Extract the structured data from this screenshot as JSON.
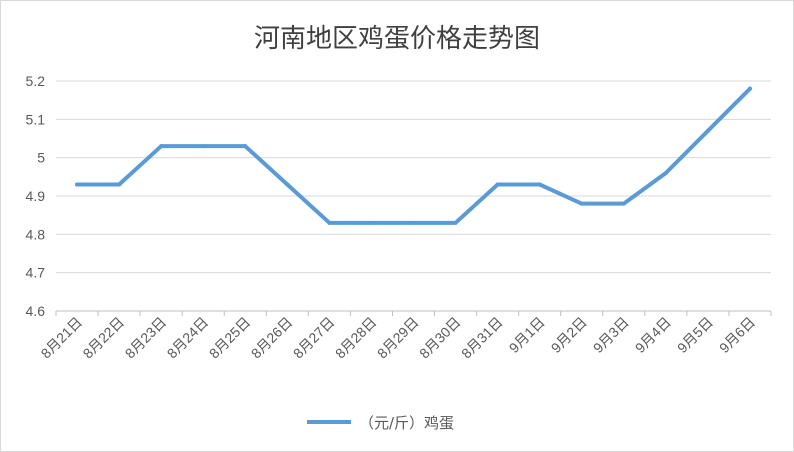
{
  "chart_data": {
    "type": "line",
    "title": "河南地区鸡蛋价格走势图",
    "xlabel": "",
    "ylabel": "",
    "categories": [
      "8月21日",
      "8月22日",
      "8月23日",
      "8月24日",
      "8月25日",
      "8月26日",
      "8月27日",
      "8月28日",
      "8月29日",
      "8月30日",
      "8月31日",
      "9月1日",
      "9月2日",
      "9月3日",
      "9月4日",
      "9月5日",
      "9月6日"
    ],
    "series": [
      {
        "name": "鸡蛋",
        "color": "#5b9bd5",
        "values": [
          4.93,
          4.93,
          5.03,
          5.03,
          5.03,
          4.93,
          4.83,
          4.83,
          4.83,
          4.83,
          4.93,
          4.93,
          4.88,
          4.88,
          4.96,
          5.07,
          5.18
        ]
      }
    ],
    "ylim": [
      4.6,
      5.2
    ],
    "yticks": [
      "4.6",
      "4.7",
      "4.8",
      "4.9",
      "5",
      "5.1",
      "5.2"
    ],
    "grid": true,
    "legend": {
      "position": "bottom",
      "label": "（元/斤）鸡蛋"
    }
  }
}
